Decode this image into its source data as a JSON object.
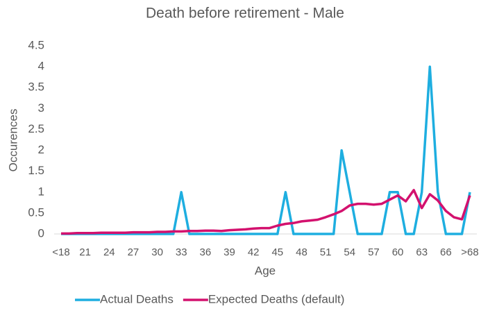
{
  "chart_data": {
    "type": "line",
    "title": "Death before retirement - Male",
    "x_label": "Age",
    "y_label": "Occurences",
    "categories": [
      "<18",
      null,
      null,
      "21",
      null,
      null,
      "24",
      null,
      null,
      "27",
      null,
      null,
      "30",
      null,
      null,
      "33",
      null,
      null,
      "36",
      null,
      null,
      "39",
      null,
      null,
      "42",
      null,
      null,
      "45",
      null,
      null,
      "48",
      null,
      null,
      "51",
      null,
      null,
      "54",
      null,
      null,
      "57",
      null,
      null,
      "60",
      null,
      null,
      "63",
      null,
      null,
      "66",
      null,
      null,
      ">68"
    ],
    "series": [
      {
        "name": "Actual Deaths",
        "color": "#1eaee0",
        "values": [
          0,
          0,
          0,
          0,
          0,
          0,
          0,
          0,
          0,
          0,
          0,
          0,
          0,
          0,
          0,
          1,
          0,
          0,
          0,
          0,
          0,
          0,
          0,
          0,
          0,
          0,
          0,
          0,
          1,
          0,
          0,
          0,
          0,
          0,
          0,
          2,
          1,
          0,
          0,
          0,
          0,
          1,
          1,
          0,
          0,
          1,
          4,
          1,
          0,
          0,
          0,
          1
        ]
      },
      {
        "name": "Expected Deaths (default)",
        "color": "#d3116e",
        "values": [
          0.01,
          0.01,
          0.02,
          0.02,
          0.02,
          0.03,
          0.03,
          0.03,
          0.03,
          0.04,
          0.04,
          0.04,
          0.05,
          0.05,
          0.06,
          0.06,
          0.07,
          0.07,
          0.08,
          0.08,
          0.07,
          0.09,
          0.1,
          0.11,
          0.13,
          0.14,
          0.14,
          0.2,
          0.24,
          0.26,
          0.3,
          0.32,
          0.34,
          0.4,
          0.47,
          0.55,
          0.68,
          0.72,
          0.72,
          0.7,
          0.72,
          0.82,
          0.92,
          0.78,
          1.05,
          0.62,
          0.95,
          0.8,
          0.55,
          0.4,
          0.35,
          0.92
        ]
      }
    ],
    "ylim": [
      0,
      4.5
    ],
    "yticks": [
      0,
      0.5,
      1,
      1.5,
      2,
      2.5,
      3,
      3.5,
      4,
      4.5
    ],
    "grid": false,
    "legend": "bottom"
  }
}
